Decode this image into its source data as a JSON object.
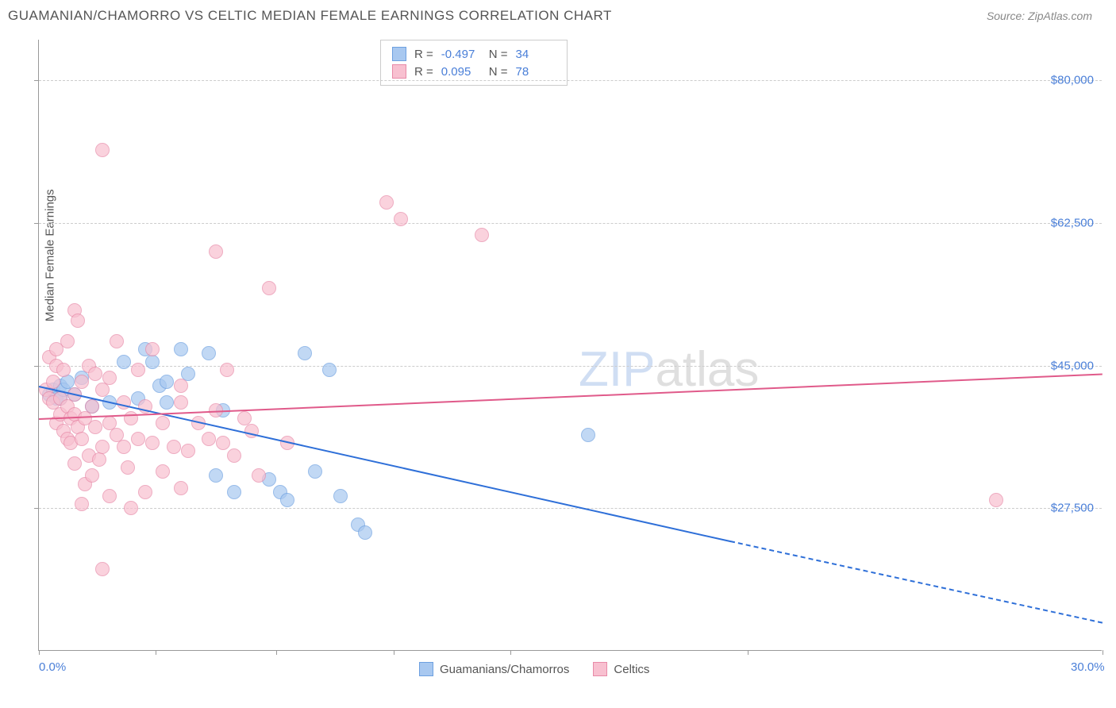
{
  "header": {
    "title": "GUAMANIAN/CHAMORRO VS CELTIC MEDIAN FEMALE EARNINGS CORRELATION CHART",
    "source": "Source: ZipAtlas.com"
  },
  "watermark": {
    "zip": "ZIP",
    "atlas": "atlas"
  },
  "chart": {
    "type": "scatter",
    "background_color": "#ffffff",
    "grid_color": "#cccccc",
    "axis_color": "#999999",
    "text_color": "#555555",
    "value_color": "#4a7fd8",
    "ylabel": "Median Female Earnings",
    "xlim": [
      0,
      30
    ],
    "ylim": [
      10000,
      85000
    ],
    "x_ticks": [
      0,
      3.3,
      6.7,
      10,
      13.3,
      20,
      30
    ],
    "x_tick_labels_shown": {
      "0": "0.0%",
      "30": "30.0%"
    },
    "y_ticks": [
      27500,
      45000,
      62500,
      80000
    ],
    "y_tick_labels": {
      "27500": "$27,500",
      "45000": "$45,000",
      "62500": "$62,500",
      "80000": "$80,000"
    },
    "series": [
      {
        "name": "Guamanians/Chamorros",
        "legend_label": "Guamanians/Chamorros",
        "marker_color": "#a8c8f0",
        "marker_border": "#6da0e0",
        "marker_radius": 9,
        "marker_opacity": 0.7,
        "stats": {
          "R": "-0.497",
          "N": "34"
        },
        "trend": {
          "color": "#2e6fd8",
          "width": 2,
          "x1": 0,
          "y1": 42500,
          "x2": 19.5,
          "y2": 23500,
          "dash_x2": 30,
          "dash_y2": 13500
        },
        "points": [
          [
            0.3,
            41500
          ],
          [
            0.4,
            42000
          ],
          [
            0.5,
            41000
          ],
          [
            0.6,
            42500
          ],
          [
            0.6,
            41000
          ],
          [
            0.7,
            42000
          ],
          [
            0.8,
            43000
          ],
          [
            1.0,
            41500
          ],
          [
            1.2,
            43500
          ],
          [
            1.5,
            40000
          ],
          [
            2.0,
            40500
          ],
          [
            2.4,
            45500
          ],
          [
            2.8,
            41000
          ],
          [
            3.0,
            47000
          ],
          [
            3.2,
            45500
          ],
          [
            3.4,
            42500
          ],
          [
            3.6,
            40500
          ],
          [
            3.6,
            43000
          ],
          [
            4.0,
            47000
          ],
          [
            4.2,
            44000
          ],
          [
            4.8,
            46500
          ],
          [
            5.0,
            31500
          ],
          [
            5.2,
            39500
          ],
          [
            5.5,
            29500
          ],
          [
            6.5,
            31000
          ],
          [
            6.8,
            29500
          ],
          [
            7.0,
            28500
          ],
          [
            7.5,
            46500
          ],
          [
            7.8,
            32000
          ],
          [
            8.2,
            44500
          ],
          [
            8.5,
            29000
          ],
          [
            9.0,
            25500
          ],
          [
            9.2,
            24500
          ],
          [
            15.5,
            36500
          ]
        ]
      },
      {
        "name": "Celtics",
        "legend_label": "Celtics",
        "marker_color": "#f8c0d0",
        "marker_border": "#e88aa8",
        "marker_radius": 9,
        "marker_opacity": 0.7,
        "stats": {
          "R": "0.095",
          "N": "78"
        },
        "trend": {
          "color": "#e05a8a",
          "width": 2,
          "x1": 0,
          "y1": 38500,
          "x2": 30,
          "y2": 44000
        },
        "points": [
          [
            0.2,
            42000
          ],
          [
            0.3,
            41000
          ],
          [
            0.3,
            46000
          ],
          [
            0.4,
            40500
          ],
          [
            0.4,
            43000
          ],
          [
            0.5,
            38000
          ],
          [
            0.5,
            45000
          ],
          [
            0.5,
            47000
          ],
          [
            0.6,
            39000
          ],
          [
            0.6,
            41000
          ],
          [
            0.7,
            37000
          ],
          [
            0.7,
            44500
          ],
          [
            0.8,
            36000
          ],
          [
            0.8,
            40000
          ],
          [
            0.8,
            48000
          ],
          [
            0.9,
            35500
          ],
          [
            0.9,
            38500
          ],
          [
            1.0,
            33000
          ],
          [
            1.0,
            39000
          ],
          [
            1.0,
            41500
          ],
          [
            1.0,
            51800
          ],
          [
            1.1,
            37500
          ],
          [
            1.1,
            50500
          ],
          [
            1.2,
            28000
          ],
          [
            1.2,
            36000
          ],
          [
            1.2,
            43000
          ],
          [
            1.3,
            30500
          ],
          [
            1.3,
            38500
          ],
          [
            1.4,
            34000
          ],
          [
            1.4,
            45000
          ],
          [
            1.5,
            31500
          ],
          [
            1.5,
            40000
          ],
          [
            1.6,
            37500
          ],
          [
            1.6,
            44000
          ],
          [
            1.7,
            33500
          ],
          [
            1.8,
            20000
          ],
          [
            1.8,
            35000
          ],
          [
            1.8,
            42000
          ],
          [
            1.8,
            71500
          ],
          [
            2.0,
            29000
          ],
          [
            2.0,
            38000
          ],
          [
            2.0,
            43500
          ],
          [
            2.2,
            36500
          ],
          [
            2.2,
            48000
          ],
          [
            2.4,
            35000
          ],
          [
            2.4,
            40500
          ],
          [
            2.5,
            32500
          ],
          [
            2.6,
            27500
          ],
          [
            2.6,
            38500
          ],
          [
            2.8,
            36000
          ],
          [
            2.8,
            44500
          ],
          [
            3.0,
            29500
          ],
          [
            3.0,
            40000
          ],
          [
            3.2,
            35500
          ],
          [
            3.2,
            47000
          ],
          [
            3.5,
            32000
          ],
          [
            3.5,
            38000
          ],
          [
            3.8,
            35000
          ],
          [
            4.0,
            30000
          ],
          [
            4.0,
            40500
          ],
          [
            4.0,
            42500
          ],
          [
            4.2,
            34500
          ],
          [
            4.5,
            38000
          ],
          [
            4.8,
            36000
          ],
          [
            5.0,
            59000
          ],
          [
            5.0,
            39500
          ],
          [
            5.2,
            35500
          ],
          [
            5.3,
            44500
          ],
          [
            5.5,
            34000
          ],
          [
            5.8,
            38500
          ],
          [
            6.0,
            37000
          ],
          [
            6.2,
            31500
          ],
          [
            6.5,
            54500
          ],
          [
            7.0,
            35500
          ],
          [
            9.8,
            65000
          ],
          [
            10.2,
            63000
          ],
          [
            12.5,
            61000
          ],
          [
            27.0,
            28500
          ]
        ]
      }
    ]
  },
  "legend_labels": {
    "R": "R =",
    "N": "N ="
  }
}
